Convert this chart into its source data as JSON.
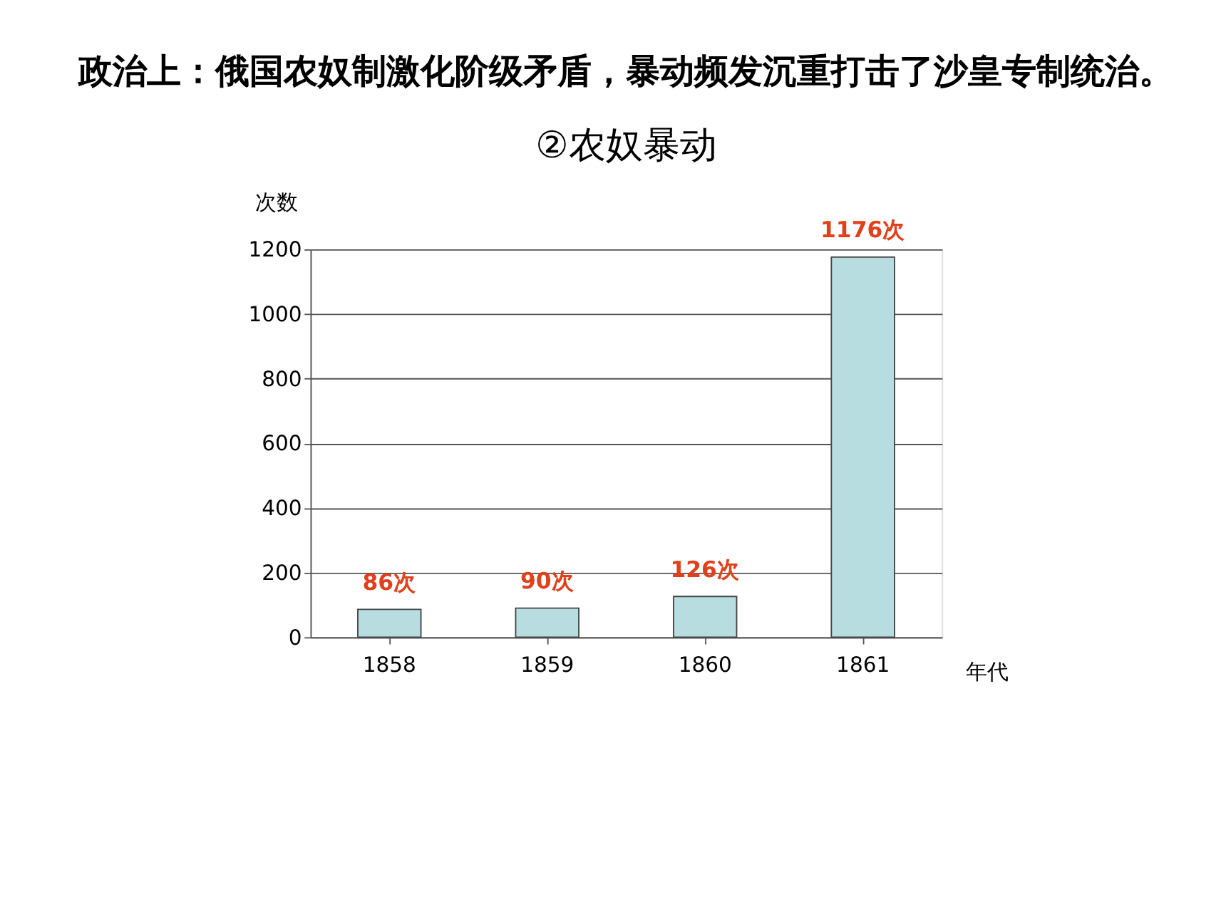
{
  "chart_data": {
    "type": "bar",
    "title": "政治上：俄国农奴制激化阶级矛盾，暴动频发沉重打击了沙皇专制统治。",
    "subtitle": "②农奴暴动",
    "xlabel": "年代",
    "ylabel": "次数",
    "categories": [
      "1858",
      "1859",
      "1860",
      "1861"
    ],
    "values": [
      86,
      90,
      126,
      1176
    ],
    "color": "#b8dde0",
    "value_labels": [
      "86次",
      "90次",
      "126次",
      "1176次"
    ],
    "ylim": [
      0,
      1200
    ],
    "yticks": [
      0,
      200,
      400,
      600,
      800,
      1000,
      1200
    ],
    "grid": "y"
  }
}
